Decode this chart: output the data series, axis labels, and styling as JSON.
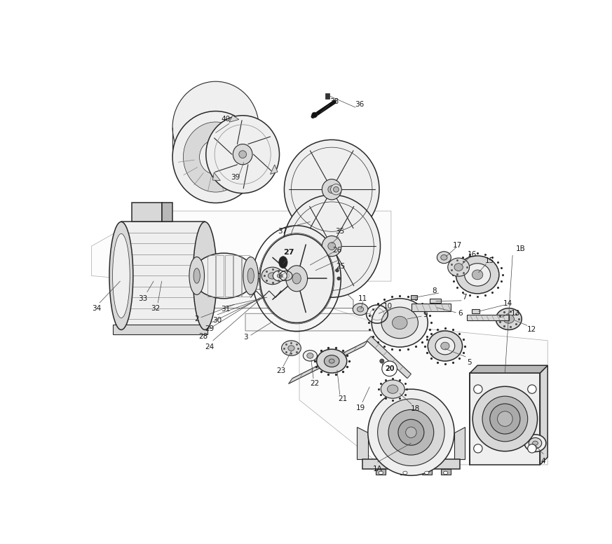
{
  "bg_color": "#ffffff",
  "lc": "#2a2a2a",
  "lc_light": "#888888",
  "fc_light": "#efefef",
  "fc_med": "#d8d8d8",
  "fc_dark": "#b8b8b8",
  "fig_w": 8.73,
  "fig_h": 7.76,
  "dpi": 100,
  "label_fs": 7.5,
  "label_bold": [
    "27",
    "20"
  ]
}
